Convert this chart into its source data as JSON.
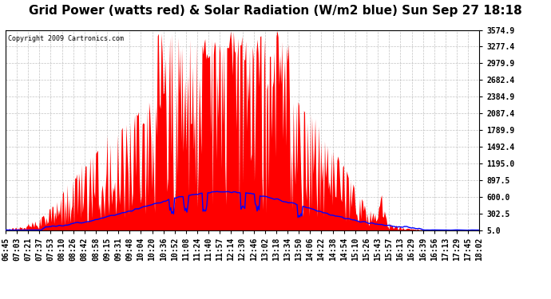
{
  "title": "Grid Power (watts red) & Solar Radiation (W/m2 blue) Sun Sep 27 18:18",
  "copyright": "Copyright 2009 Cartronics.com",
  "yticks": [
    5.0,
    302.5,
    600.0,
    897.5,
    1195.0,
    1492.4,
    1789.9,
    2087.4,
    2384.9,
    2682.4,
    2979.9,
    3277.4,
    3574.9
  ],
  "ymin": 5.0,
  "ymax": 3574.9,
  "bg_color": "#ffffff",
  "plot_bg_color": "#ffffff",
  "grid_color": "#aaaaaa",
  "red_color": "#ff0000",
  "blue_color": "#0000ff",
  "title_fontsize": 11,
  "tick_fontsize": 7,
  "x_tick_labels": [
    "06:45",
    "07:03",
    "07:21",
    "07:37",
    "07:53",
    "08:10",
    "08:26",
    "08:42",
    "08:58",
    "09:15",
    "09:31",
    "09:48",
    "10:04",
    "10:20",
    "10:36",
    "10:52",
    "11:08",
    "11:24",
    "11:40",
    "11:57",
    "12:14",
    "12:30",
    "12:46",
    "13:02",
    "13:18",
    "13:34",
    "13:50",
    "14:06",
    "14:22",
    "14:38",
    "14:54",
    "15:10",
    "15:26",
    "15:43",
    "15:57",
    "16:13",
    "16:29",
    "16:39",
    "16:56",
    "17:13",
    "17:29",
    "17:45",
    "18:02"
  ]
}
